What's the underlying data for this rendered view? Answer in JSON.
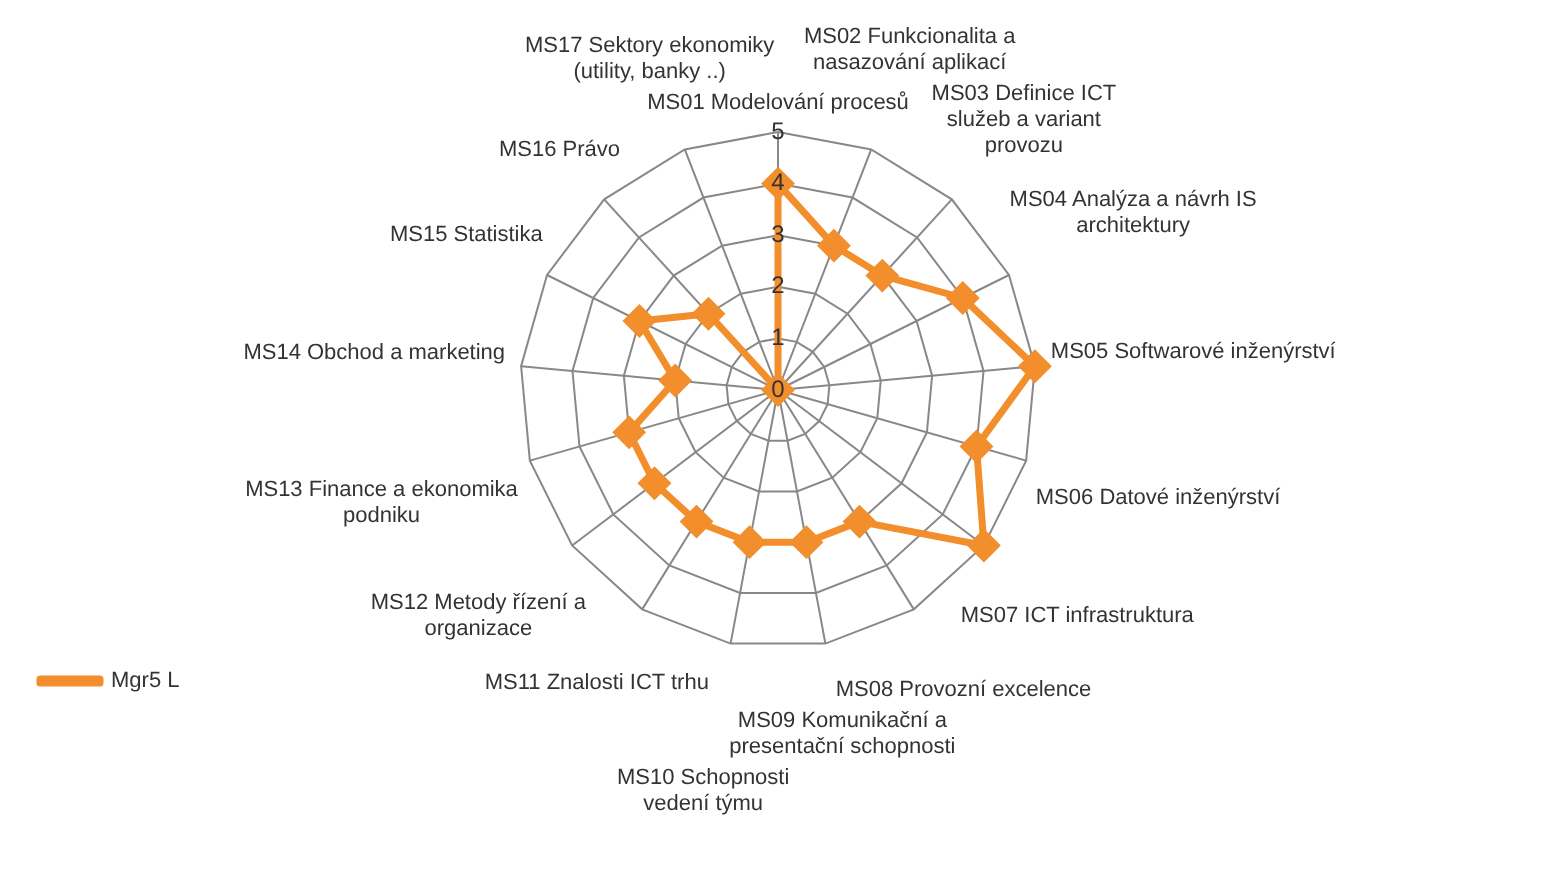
{
  "chart_data": {
    "type": "radar",
    "categories": [
      "MS01 Modelování procesů",
      "MS02 Funkcionalita a nasazování aplikací",
      "MS03 Definice ICT služeb a variant provozu",
      "MS04 Analýza a návrh IS architektury",
      "MS05 Softwarové inženýrství",
      "MS06 Datové inženýrství",
      "MS07 ICT infrastruktura",
      "MS08 Provozní excelence",
      "MS09 Komunikační a presentační schopnosti",
      "MS10 Schopnosti vedení týmu",
      "MS11 Znalosti ICT trhu",
      "MS12 Metody řízení a organizace",
      "MS13 Finance a ekonomika podniku",
      "MS14 Obchod a marketing",
      "MS15 Statistika",
      "MS16 Právo",
      "MS17 Sektory ekonomiky (utility, banky ..)"
    ],
    "series": [
      {
        "name": "Mgr5 L",
        "color": "#f28e2b",
        "values": [
          4,
          3,
          3,
          4,
          5,
          4,
          5,
          3,
          3,
          3,
          3,
          3,
          3,
          2,
          3,
          2,
          0
        ]
      }
    ],
    "ylim": [
      0,
      5
    ],
    "yticks": [
      0,
      1,
      2,
      3,
      4,
      5
    ],
    "grid": true,
    "legend": "bottom left",
    "marker": "diamond",
    "line_style": "solid"
  }
}
